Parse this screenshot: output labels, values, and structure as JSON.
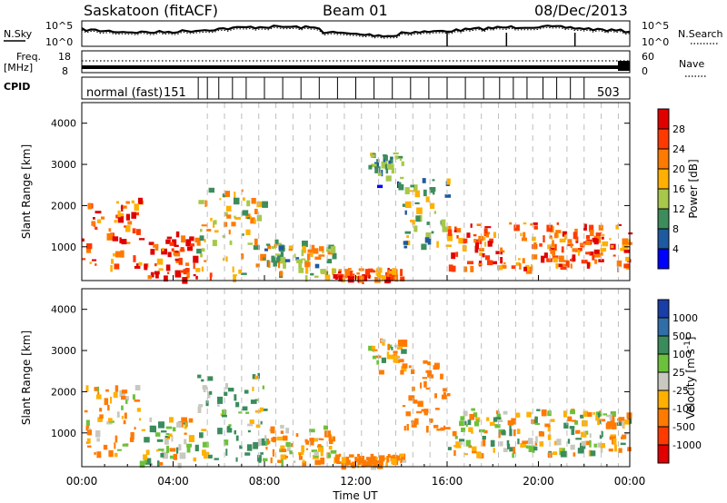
{
  "header": {
    "station": "Saskatoon (fitACF)",
    "beam": "Beam 01",
    "date": "08/Dec/2013"
  },
  "left_labels": {
    "nsky": "N.Sky",
    "freq_line1": "Freq.",
    "freq_line2": "[MHz]",
    "cpid": "CPID"
  },
  "right_labels": {
    "nsearch": "N.Search",
    "nave": "Nave"
  },
  "noise_axis": {
    "left_ticks": [
      "10^5",
      "10^0"
    ],
    "right_ticks": [
      "10^5",
      "10^0"
    ]
  },
  "freq_axis": {
    "left_ticks": [
      "18",
      "8"
    ],
    "right_ticks": [
      "60",
      "0"
    ]
  },
  "cpid_text": {
    "first": "normal (fast)",
    "first_id": "151",
    "last_id": "503"
  },
  "x_axis": {
    "label": "Time UT",
    "ticks": [
      "00:00",
      "04:00",
      "08:00",
      "12:00",
      "16:00",
      "20:00",
      "00:00"
    ]
  },
  "power_colorbar": {
    "label": "Power [dB]",
    "ticks": [
      "28",
      "24",
      "20",
      "16",
      "12",
      "8",
      "4"
    ],
    "colors": [
      "#e00000",
      "#ff3a00",
      "#ff7a00",
      "#ffb000",
      "#a7c84a",
      "#3d8d5c",
      "#1e5aa0",
      "#0000ff"
    ]
  },
  "velocity_colorbar": {
    "label": "Velocity [m s",
    "label_sup": "-1",
    "label_end": "]",
    "ticks": [
      "1000",
      "500",
      "100",
      "25",
      "-25",
      "-100",
      "-500",
      "-1000"
    ],
    "colors": [
      "#1a3ea8",
      "#2f6ea8",
      "#3a8c5c",
      "#6cc13a",
      "#c8c8c0",
      "#ffb000",
      "#ff7a00",
      "#ff3a00",
      "#e00000"
    ]
  },
  "chart_data": [
    {
      "type": "heatmap",
      "title": "Power",
      "xlabel": "Time UT",
      "ylabel": "Slant Range [km]",
      "xlim": [
        0,
        24
      ],
      "ylim": [
        180,
        4500
      ],
      "yticks": [
        1000,
        2000,
        3000,
        4000
      ],
      "colorbar_label": "Power [dB]",
      "colorbar_range": [
        0,
        30
      ],
      "scatter_bands": [
        {
          "t": [
            0.0,
            2.5
          ],
          "r": [
            500,
            2200
          ],
          "power": 22
        },
        {
          "t": [
            2.5,
            5.0
          ],
          "r": [
            250,
            1400
          ],
          "power": 25
        },
        {
          "t": [
            5.0,
            8.0
          ],
          "r": [
            300,
            2500
          ],
          "power": 16
        },
        {
          "t": [
            8.0,
            11.0
          ],
          "r": [
            300,
            1200
          ],
          "power": 14
        },
        {
          "t": [
            11.0,
            14.0
          ],
          "r": [
            250,
            500
          ],
          "power": 22
        },
        {
          "t": [
            12.5,
            14.0
          ],
          "r": [
            2500,
            3300
          ],
          "power": 10
        },
        {
          "t": [
            14.0,
            16.0
          ],
          "r": [
            1000,
            2800
          ],
          "power": 12
        },
        {
          "t": [
            16.0,
            24.0
          ],
          "r": [
            500,
            1600
          ],
          "power": 22
        }
      ]
    },
    {
      "type": "heatmap",
      "title": "Velocity",
      "xlabel": "Time UT",
      "ylabel": "Slant Range [km]",
      "xlim": [
        0,
        24
      ],
      "ylim": [
        180,
        4500
      ],
      "yticks": [
        1000,
        2000,
        3000,
        4000
      ],
      "colorbar_label": "Velocity [m s-1]",
      "colorbar_range": [
        -1000,
        1000
      ],
      "scatter_bands": [
        {
          "t": [
            0.0,
            2.5
          ],
          "r": [
            500,
            2200
          ],
          "velocity": -100
        },
        {
          "t": [
            2.5,
            5.0
          ],
          "r": [
            250,
            1400
          ],
          "velocity": 0
        },
        {
          "t": [
            5.0,
            8.0
          ],
          "r": [
            300,
            2500
          ],
          "velocity": 100
        },
        {
          "t": [
            8.0,
            11.0
          ],
          "r": [
            300,
            1200
          ],
          "velocity": -100
        },
        {
          "t": [
            11.0,
            14.0
          ],
          "r": [
            250,
            500
          ],
          "velocity": -200
        },
        {
          "t": [
            12.5,
            14.0
          ],
          "r": [
            2500,
            3300
          ],
          "velocity": 0
        },
        {
          "t": [
            14.0,
            16.0
          ],
          "r": [
            1000,
            2800
          ],
          "velocity": -300
        },
        {
          "t": [
            16.0,
            24.0
          ],
          "r": [
            500,
            1600
          ],
          "velocity": 0
        }
      ]
    }
  ]
}
